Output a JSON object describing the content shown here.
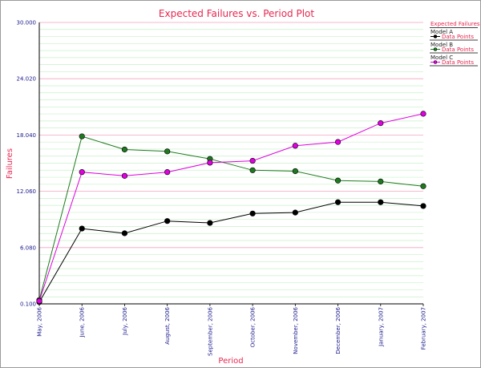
{
  "chart_data": {
    "type": "line",
    "title": "Expected Failures vs. Period Plot",
    "xlabel": "Period",
    "ylabel": "Failures",
    "categories": [
      "May, 2006",
      "June, 2006",
      "July, 2006",
      "August, 2006",
      "September, 2006",
      "October, 2006",
      "November, 2006",
      "December, 2006",
      "January, 2007",
      "February, 2007"
    ],
    "ylim": [
      0.1,
      30.0
    ],
    "yticks": [
      "0.100",
      "6.080",
      "12.060",
      "18.040",
      "24.020",
      "30.000"
    ],
    "grid": true,
    "legend": {
      "title": "Expected Failures",
      "placement": "right"
    },
    "series": [
      {
        "name": "Model A",
        "item": "Data Points",
        "color": "#000000",
        "values": [
          0.3,
          8.1,
          7.6,
          8.9,
          8.7,
          9.7,
          9.8,
          10.9,
          10.9,
          10.5
        ]
      },
      {
        "name": "Model B",
        "item": "Data Points",
        "color": "#1f7a1f",
        "values": [
          0.5,
          17.9,
          16.5,
          16.3,
          15.5,
          14.3,
          14.2,
          13.2,
          13.1,
          12.6
        ]
      },
      {
        "name": "Model C",
        "item": "Data Points",
        "color": "#e000e0",
        "values": [
          0.4,
          14.1,
          13.7,
          14.1,
          15.1,
          15.3,
          16.9,
          17.3,
          19.3,
          20.3
        ]
      }
    ]
  }
}
